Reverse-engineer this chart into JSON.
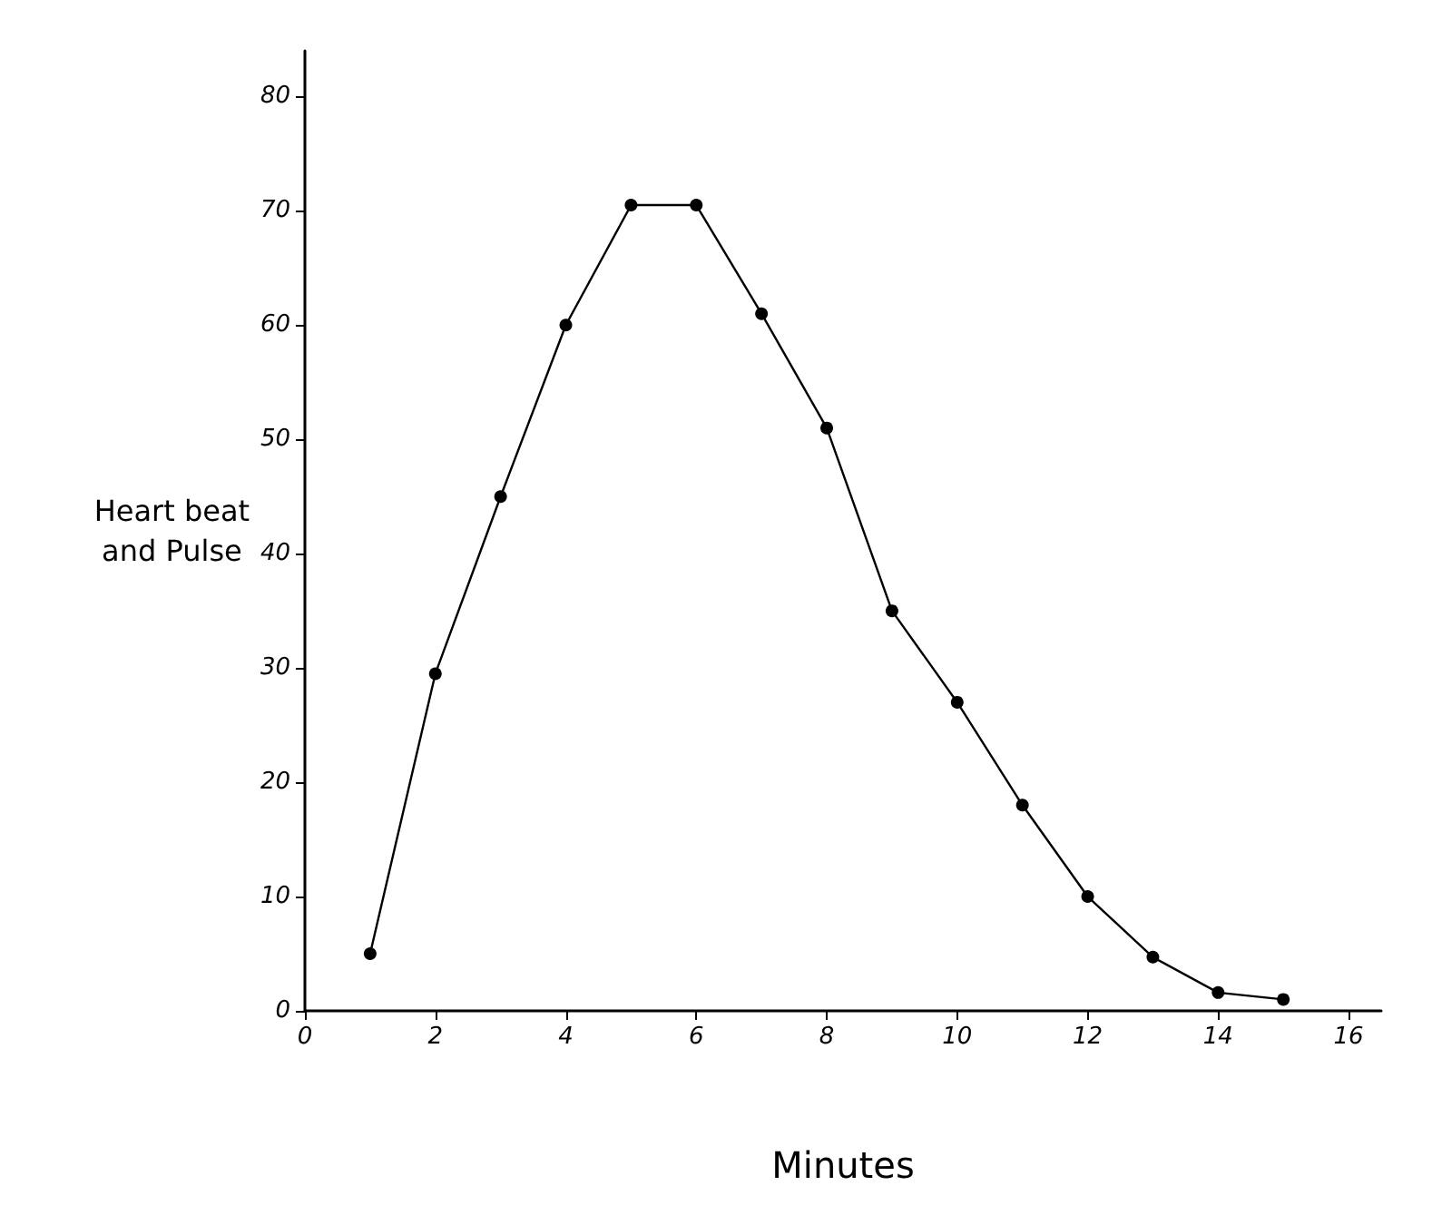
{
  "chart_data": {
    "type": "line",
    "xlabel": "Minutes",
    "ylabel": "Heart beat and Pulse",
    "x": [
      1,
      2,
      3,
      4,
      5,
      6,
      7,
      8,
      9,
      10,
      11,
      12,
      13,
      14,
      15
    ],
    "series": [
      {
        "color": "#000000",
        "values": [
          5,
          29.5,
          45,
          60,
          70.5,
          70.5,
          61,
          51,
          35,
          27,
          18,
          10,
          4.7,
          1.6,
          1
        ]
      }
    ],
    "xlim": [
      0,
      16.5
    ],
    "xticks": [
      0,
      2,
      4,
      6,
      8,
      10,
      12,
      14,
      16
    ],
    "ylim": [
      0,
      84
    ],
    "yticks": [
      0,
      10,
      20,
      30,
      40,
      50,
      60,
      70,
      80
    ],
    "marker": "circle",
    "line_style": "solid"
  }
}
